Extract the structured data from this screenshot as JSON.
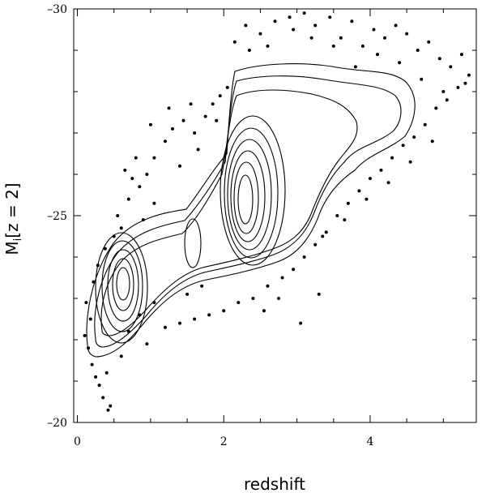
{
  "chart_data": {
    "type": "scatter",
    "title": "",
    "xlabel": "redshift",
    "ylabel": {
      "main": "M",
      "subscript": "i",
      "bracket": "[z = 2]"
    },
    "xlim": [
      -0.05,
      5.45
    ],
    "ylim": [
      -20,
      -30
    ],
    "x_ticks": [
      0,
      2,
      4
    ],
    "y_ticks": [
      -20,
      -25,
      -30
    ],
    "grid": false,
    "legend": "none",
    "series": [
      {
        "kind": "points",
        "points": [
          [
            0.35,
            -20.6
          ],
          [
            0.45,
            -20.4
          ],
          [
            0.42,
            -20.3
          ],
          [
            0.3,
            -20.9
          ],
          [
            0.25,
            -21.1
          ],
          [
            0.2,
            -21.4
          ],
          [
            0.15,
            -21.8
          ],
          [
            0.1,
            -22.1
          ],
          [
            0.18,
            -22.5
          ],
          [
            0.12,
            -22.9
          ],
          [
            0.22,
            -23.4
          ],
          [
            0.28,
            -23.8
          ],
          [
            0.38,
            -24.2
          ],
          [
            0.5,
            -24.5
          ],
          [
            0.6,
            -24.7
          ],
          [
            0.55,
            -25.0
          ],
          [
            0.7,
            -25.4
          ],
          [
            0.85,
            -25.7
          ],
          [
            0.95,
            -26.0
          ],
          [
            1.05,
            -26.4
          ],
          [
            1.2,
            -26.8
          ],
          [
            1.3,
            -27.1
          ],
          [
            1.45,
            -27.3
          ],
          [
            1.6,
            -27.0
          ],
          [
            1.75,
            -27.4
          ],
          [
            1.85,
            -27.7
          ],
          [
            1.95,
            -27.9
          ],
          [
            2.05,
            -28.1
          ],
          [
            1.25,
            -27.6
          ],
          [
            1.05,
            -25.3
          ],
          [
            0.9,
            -24.9
          ],
          [
            1.4,
            -26.2
          ],
          [
            1.65,
            -26.6
          ],
          [
            1.9,
            -27.3
          ],
          [
            0.65,
            -26.1
          ],
          [
            0.8,
            -26.4
          ],
          [
            2.15,
            -29.2
          ],
          [
            2.3,
            -29.6
          ],
          [
            2.5,
            -29.4
          ],
          [
            2.7,
            -29.7
          ],
          [
            2.9,
            -29.8
          ],
          [
            3.1,
            -29.9
          ],
          [
            3.25,
            -29.6
          ],
          [
            3.45,
            -29.8
          ],
          [
            3.6,
            -29.3
          ],
          [
            3.75,
            -29.7
          ],
          [
            3.9,
            -29.1
          ],
          [
            4.05,
            -29.5
          ],
          [
            4.2,
            -29.3
          ],
          [
            4.35,
            -29.6
          ],
          [
            4.5,
            -29.4
          ],
          [
            4.65,
            -29.0
          ],
          [
            4.8,
            -29.2
          ],
          [
            4.95,
            -28.8
          ],
          [
            5.1,
            -28.6
          ],
          [
            5.25,
            -28.9
          ],
          [
            5.35,
            -28.4
          ],
          [
            5.2,
            -28.1
          ],
          [
            5.05,
            -27.8
          ],
          [
            4.9,
            -27.6
          ],
          [
            4.75,
            -27.2
          ],
          [
            4.6,
            -26.9
          ],
          [
            4.45,
            -26.7
          ],
          [
            4.3,
            -26.4
          ],
          [
            4.15,
            -26.1
          ],
          [
            4.0,
            -25.9
          ],
          [
            3.85,
            -25.6
          ],
          [
            3.7,
            -25.3
          ],
          [
            3.55,
            -25.0
          ],
          [
            3.4,
            -24.6
          ],
          [
            3.25,
            -24.3
          ],
          [
            3.1,
            -24.0
          ],
          [
            2.95,
            -23.7
          ],
          [
            2.8,
            -23.5
          ],
          [
            2.6,
            -23.3
          ],
          [
            2.4,
            -23.0
          ],
          [
            2.2,
            -22.9
          ],
          [
            2.0,
            -22.7
          ],
          [
            1.8,
            -22.6
          ],
          [
            1.6,
            -22.5
          ],
          [
            1.4,
            -22.4
          ],
          [
            1.2,
            -22.3
          ],
          [
            3.05,
            -22.4
          ],
          [
            3.3,
            -23.1
          ],
          [
            2.75,
            -23.0
          ],
          [
            2.55,
            -22.7
          ],
          [
            1.5,
            -23.1
          ],
          [
            1.7,
            -23.3
          ],
          [
            1.05,
            -22.9
          ],
          [
            0.7,
            -22.2
          ],
          [
            0.85,
            -22.6
          ],
          [
            0.95,
            -21.9
          ],
          [
            0.6,
            -21.6
          ],
          [
            0.4,
            -21.2
          ],
          [
            5.3,
            -28.2
          ],
          [
            4.4,
            -28.7
          ],
          [
            4.1,
            -28.9
          ],
          [
            3.8,
            -28.6
          ],
          [
            3.5,
            -29.1
          ],
          [
            3.2,
            -29.3
          ],
          [
            2.95,
            -29.5
          ],
          [
            2.6,
            -29.1
          ],
          [
            2.35,
            -29.0
          ],
          [
            4.7,
            -28.3
          ],
          [
            5.0,
            -28.0
          ],
          [
            4.85,
            -26.8
          ],
          [
            4.55,
            -26.3
          ],
          [
            4.25,
            -25.8
          ],
          [
            3.95,
            -25.4
          ],
          [
            3.65,
            -24.9
          ],
          [
            3.35,
            -24.5
          ],
          [
            1.0,
            -27.2
          ],
          [
            0.75,
            -25.9
          ],
          [
            1.55,
            -27.7
          ]
        ]
      }
    ]
  }
}
